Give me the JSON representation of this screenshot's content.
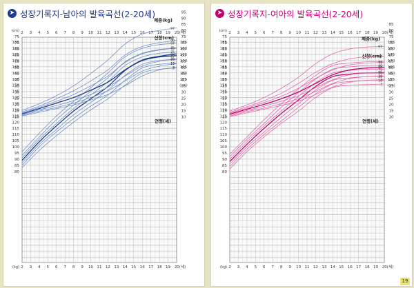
{
  "panels": [
    {
      "title": "성장기록지-남아의 발육곡선(2-20세)",
      "accent": "#1c3c8c",
      "curve_color": "#6f8fc8",
      "title_color": "#233a86",
      "arrow_icon": "arrow-right-circle-icon",
      "page_number": ""
    },
    {
      "title": "성장기록지-여아의 발육곡선(2-20세)",
      "accent": "#c3006e",
      "curve_color": "#e466aa",
      "title_color": "#d4007a",
      "arrow_icon": "arrow-right-circle-icon",
      "page_number": "19"
    }
  ],
  "chart_data": [
    {
      "type": "line",
      "title": "성장기록지-남아의 발육곡선(2-20세)",
      "x_ticks": [
        "2",
        "3",
        "4",
        "5",
        "6",
        "7",
        "8",
        "9",
        "10",
        "11",
        "12",
        "13",
        "14",
        "15",
        "16",
        "17",
        "18",
        "19",
        "20"
      ],
      "x_end_label": "20(세)",
      "x_unit_bottom": "(kg)",
      "xlabel": "연령(세)",
      "height_axis": {
        "label": "신장(cm)",
        "ticks": [
          80,
          85,
          90,
          95,
          100,
          105,
          110,
          115,
          120,
          125,
          130,
          135,
          140,
          145,
          150,
          155,
          160,
          165,
          170,
          175,
          180,
          185
        ],
        "unit": "(cm)",
        "right_ticks": [
          155,
          160,
          165,
          170,
          175,
          180,
          185
        ]
      },
      "weight_axis": {
        "label": "체중(kg)",
        "ticks": [
          10,
          15,
          20,
          25,
          30,
          35,
          40,
          45,
          50,
          55,
          60,
          65,
          70,
          75,
          80,
          85,
          90,
          95
        ],
        "unit": "(cm)",
        "right_ticks": [
          10,
          15,
          20,
          25,
          30,
          35,
          40,
          45,
          50,
          55,
          60,
          65,
          70,
          75,
          80,
          85,
          90,
          95
        ]
      },
      "xlim": [
        2,
        20
      ],
      "x": [
        2,
        4,
        6,
        8,
        10,
        12,
        14,
        16,
        18,
        20
      ],
      "height_series": [
        {
          "name": "3",
          "values": [
            83,
            97,
            109,
            120,
            130,
            139,
            150,
            160,
            163,
            164
          ]
        },
        {
          "name": "10",
          "values": [
            85,
            100,
            112,
            123,
            133,
            142,
            154,
            164,
            167,
            168
          ]
        },
        {
          "name": "25",
          "values": [
            87,
            102,
            114,
            126,
            136,
            146,
            158,
            167,
            170,
            171
          ]
        },
        {
          "name": "50",
          "values": [
            89,
            104,
            117,
            129,
            139,
            149,
            162,
            170,
            173,
            174
          ]
        },
        {
          "name": "75",
          "values": [
            91,
            106,
            119,
            131,
            142,
            153,
            166,
            173,
            176,
            177
          ]
        },
        {
          "name": "90",
          "values": [
            93,
            108,
            122,
            134,
            145,
            156,
            169,
            176,
            179,
            180
          ]
        },
        {
          "name": "97",
          "values": [
            96,
            111,
            125,
            137,
            148,
            160,
            173,
            180,
            183,
            184
          ]
        }
      ],
      "weight_series": [
        {
          "name": "3",
          "values": [
            10.5,
            13.5,
            16.5,
            19.5,
            23.5,
            28,
            35,
            43,
            48,
            50
          ]
        },
        {
          "name": "10",
          "values": [
            11,
            14.5,
            17.5,
            21,
            25.5,
            31,
            39,
            47,
            51,
            53
          ]
        },
        {
          "name": "25",
          "values": [
            11.5,
            15.5,
            19,
            23,
            28,
            34,
            43,
            51,
            55,
            57
          ]
        },
        {
          "name": "50",
          "values": [
            12.3,
            16.5,
            21,
            25.5,
            31.5,
            38,
            48,
            56,
            59,
            61
          ]
        },
        {
          "name": "75",
          "values": [
            13,
            17.5,
            22.5,
            28,
            35,
            43,
            54,
            61,
            64,
            66
          ]
        },
        {
          "name": "90",
          "values": [
            13.8,
            18.5,
            24.5,
            31,
            39,
            48,
            60,
            67,
            70,
            72
          ]
        },
        {
          "name": "97",
          "values": [
            15,
            20.5,
            27,
            35,
            45,
            56,
            69,
            77,
            80,
            82
          ]
        }
      ]
    },
    {
      "type": "line",
      "title": "성장기록지-여아의 발육곡선(2-20세)",
      "x_ticks": [
        "2",
        "3",
        "4",
        "5",
        "6",
        "7",
        "8",
        "9",
        "10",
        "11",
        "12",
        "13",
        "14",
        "15",
        "16",
        "17",
        "18",
        "19",
        "20"
      ],
      "x_end_label": "20(세)",
      "x_unit_bottom": "(kg)",
      "xlabel": "연령(세)",
      "height_axis": {
        "label": "신장(cm)",
        "ticks": [
          80,
          85,
          90,
          95,
          100,
          105,
          110,
          115,
          120,
          125,
          130,
          135,
          140,
          145,
          150,
          155,
          160,
          165,
          170,
          175,
          180,
          185
        ],
        "unit": "(cm)",
        "right_ticks": [
          155,
          160,
          165,
          170,
          175,
          180,
          185
        ]
      },
      "weight_axis": {
        "label": "체중(kg)",
        "ticks": [
          10,
          15,
          20,
          25,
          30,
          35,
          40,
          45,
          50,
          55,
          60,
          65,
          70,
          75,
          80,
          85,
          90,
          95
        ],
        "unit": "(cm)",
        "right_ticks": [
          10,
          15,
          20,
          25,
          30,
          35,
          40,
          45,
          50,
          55,
          60,
          65,
          70,
          75,
          80,
          85
        ]
      },
      "xlim": [
        2,
        20
      ],
      "x": [
        2,
        4,
        6,
        8,
        10,
        12,
        14,
        16,
        18,
        20
      ],
      "height_series": [
        {
          "name": "3",
          "values": [
            82,
            96,
            108,
            119,
            129,
            140,
            148,
            150,
            150.5,
            151
          ]
        },
        {
          "name": "10",
          "values": [
            84,
            98,
            110,
            121,
            132,
            143,
            151,
            153,
            154,
            154
          ]
        },
        {
          "name": "25",
          "values": [
            86,
            100,
            112,
            124,
            135,
            146,
            154,
            156,
            157,
            157
          ]
        },
        {
          "name": "50",
          "values": [
            88,
            102,
            115,
            127,
            138,
            149,
            157,
            159,
            160,
            160
          ]
        },
        {
          "name": "75",
          "values": [
            90,
            104,
            117,
            129,
            141,
            152,
            160,
            162,
            163,
            163
          ]
        },
        {
          "name": "90",
          "values": [
            92,
            106,
            119,
            132,
            144,
            155,
            163,
            165,
            166,
            166
          ]
        },
        {
          "name": "97",
          "values": [
            94,
            108,
            122,
            135,
            147,
            158,
            166,
            168,
            169,
            169
          ]
        }
      ],
      "weight_series": [
        {
          "name": "3",
          "values": [
            10,
            13,
            16,
            19,
            22.5,
            28,
            34,
            38,
            39.5,
            40
          ]
        },
        {
          "name": "10",
          "values": [
            10.5,
            14,
            17,
            20.5,
            24.5,
            30.5,
            37,
            41,
            42.5,
            43
          ]
        },
        {
          "name": "25",
          "values": [
            11.2,
            15,
            18.5,
            22.5,
            27,
            33.5,
            40,
            44,
            45.5,
            46
          ]
        },
        {
          "name": "50",
          "values": [
            12,
            16,
            20,
            24.5,
            30,
            37,
            44,
            48,
            49.5,
            50
          ]
        },
        {
          "name": "75",
          "values": [
            12.8,
            17,
            21.5,
            26.5,
            33,
            41,
            48,
            52,
            53.5,
            54
          ]
        },
        {
          "name": "90",
          "values": [
            13.5,
            18,
            23,
            29,
            37,
            46,
            53,
            57,
            58.5,
            59
          ]
        },
        {
          "name": "97",
          "values": [
            14.5,
            19.5,
            25.5,
            33,
            42,
            53,
            61,
            65,
            66.5,
            67
          ]
        }
      ]
    }
  ]
}
